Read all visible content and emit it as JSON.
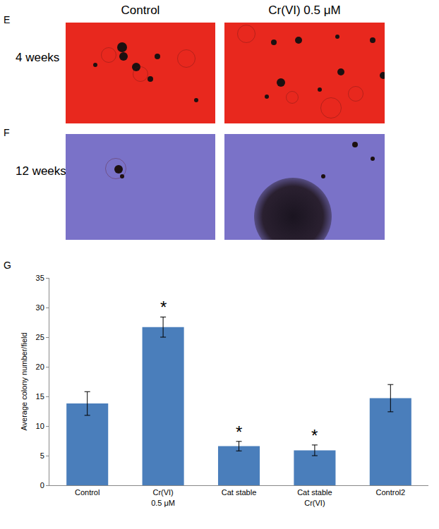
{
  "figure": {
    "columns": [
      "Control",
      "Cr(VI) 0.5 μM"
    ],
    "rows": [
      {
        "panel": "E",
        "label": "4 weeks"
      },
      {
        "panel": "F",
        "label": "12 weeks"
      }
    ],
    "chart_panel": "G"
  },
  "chart_data": {
    "type": "bar",
    "y_label": "Average colony number/field",
    "categories": [
      "Control",
      "Cr(VI) 0.5 μM",
      "Cat stable",
      "Cat stable Cr(VI)",
      "Control2"
    ],
    "values": [
      13.8,
      26.7,
      6.6,
      5.9,
      14.7
    ],
    "errors": [
      2.0,
      1.7,
      0.8,
      0.9,
      2.3
    ],
    "color": "#4a7ebb",
    "ylim": [
      0,
      35
    ],
    "yticks": [
      0,
      5,
      10,
      15,
      20,
      25,
      30,
      35
    ],
    "grid": false,
    "annotations": [
      {
        "category": "Cr(VI) 0.5 μM",
        "text": "*"
      },
      {
        "category": "Cat stable",
        "text": "*"
      },
      {
        "category": "Cat stable Cr(VI)",
        "text": "*"
      }
    ]
  }
}
